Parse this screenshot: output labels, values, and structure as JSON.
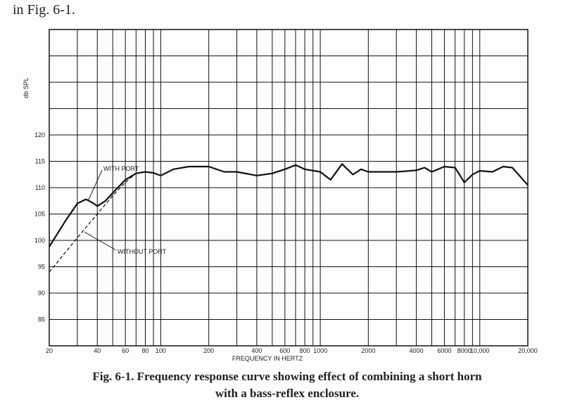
{
  "page_text": "in Fig. 6-1.",
  "chart_data": {
    "type": "line",
    "caption": [
      "Fig. 6-1. Frequency response curve showing effect of combining a short horn",
      "with a bass-reflex enclosure."
    ],
    "x_label": "FREQUENCY IN HERTZ",
    "y_label": "db SPL",
    "x_log": true,
    "grid": true,
    "xlim": [
      20,
      20000
    ],
    "ylim": [
      80,
      140
    ],
    "xticks": [
      20,
      {
        "value": 30,
        "label": null
      },
      40,
      {
        "value": 50,
        "label": null
      },
      60,
      {
        "value": 70,
        "label": null
      },
      80,
      {
        "value": 90,
        "label": null
      },
      100,
      200,
      {
        "value": 300,
        "label": null
      },
      400,
      {
        "value": 500,
        "label": null
      },
      600,
      {
        "value": 700,
        "label": null
      },
      800,
      {
        "value": 900,
        "label": null
      },
      1000,
      2000,
      {
        "value": 3000,
        "label": null
      },
      4000,
      {
        "value": 5000,
        "label": null
      },
      6000,
      {
        "value": 7000,
        "label": null
      },
      8000,
      {
        "value": 9000,
        "label": null
      },
      {
        "value": 10000,
        "label": "10,000"
      },
      {
        "value": 20000,
        "label": "20,000"
      }
    ],
    "yticks": [
      85,
      90,
      95,
      100,
      105,
      110,
      115,
      120,
      {
        "value": 125,
        "label": null
      },
      {
        "value": 130,
        "label": null
      },
      {
        "value": 135,
        "label": null
      }
    ],
    "series": [
      {
        "name": "WITH PORT",
        "color": "#111111",
        "dashed": false,
        "x": [
          20,
          25,
          30,
          34,
          38,
          40,
          45,
          50,
          60,
          70,
          80,
          90,
          100,
          120,
          150,
          200,
          250,
          300,
          400,
          500,
          600,
          700,
          800,
          1000,
          1160,
          1370,
          1600,
          1800,
          2000,
          3000,
          4000,
          4500,
          5000,
          6000,
          7000,
          8000,
          9000,
          10000,
          12000,
          14000,
          16000,
          20000
        ],
        "values": [
          98.8,
          103.5,
          107,
          107.8,
          107,
          106.5,
          107.5,
          109,
          111.5,
          112.7,
          113,
          112.8,
          112.3,
          113.5,
          114,
          114,
          113,
          113,
          112.3,
          112.7,
          113.5,
          114.3,
          113.5,
          113,
          111.5,
          114.5,
          112.5,
          113.5,
          113,
          113,
          113.3,
          113.8,
          113,
          114,
          113.8,
          111,
          112.5,
          113.2,
          113,
          114,
          113.8,
          110.5
        ]
      },
      {
        "name": "WITHOUT PORT",
        "color": "#111111",
        "dashed": true,
        "x": [
          20,
          30,
          40,
          50,
          60,
          70
        ],
        "values": [
          94,
          100.5,
          105,
          108.5,
          111,
          112.7
        ]
      }
    ]
  }
}
